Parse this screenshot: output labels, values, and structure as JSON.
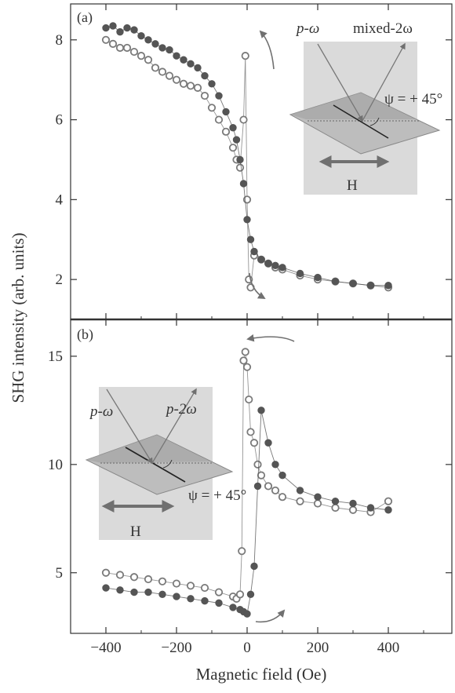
{
  "figure": {
    "ylabel": "SHG intensity (arb. units)",
    "xlabel": "Magnetic field (Oe)"
  },
  "colors": {
    "filled": "#555555",
    "open_stroke": "#7a7a7a",
    "axis": "#333333",
    "inset_bg": "#d6d6d6",
    "arrow": "#707070"
  },
  "chart_data": [
    {
      "type": "scatter",
      "panel_label": "(a)",
      "xlim": [
        -500,
        580
      ],
      "ylim": [
        1.0,
        8.9
      ],
      "xticks": [
        -400,
        -200,
        0,
        200,
        400
      ],
      "yticks": [
        2,
        4,
        6,
        8
      ],
      "ytick_labels": [
        "2",
        "4",
        "6",
        "8"
      ],
      "grid": false,
      "series": [
        {
          "style": "filled",
          "x": [
            -400,
            -380,
            -360,
            -340,
            -320,
            -300,
            -280,
            -260,
            -240,
            -220,
            -200,
            -180,
            -160,
            -140,
            -120,
            -100,
            -80,
            -60,
            -40,
            -30,
            -20,
            -10,
            0,
            10,
            20,
            40,
            60,
            80,
            100,
            150,
            200,
            250,
            300,
            350,
            400
          ],
          "y": [
            8.3,
            8.35,
            8.2,
            8.3,
            8.25,
            8.1,
            8.0,
            7.9,
            7.8,
            7.75,
            7.6,
            7.5,
            7.4,
            7.3,
            7.1,
            6.9,
            6.6,
            6.2,
            5.8,
            5.5,
            5.0,
            4.4,
            3.5,
            3.0,
            2.7,
            2.5,
            2.4,
            2.35,
            2.3,
            2.15,
            2.05,
            1.95,
            1.9,
            1.85,
            1.85
          ]
        },
        {
          "style": "open",
          "x": [
            -400,
            -380,
            -360,
            -340,
            -320,
            -300,
            -280,
            -260,
            -240,
            -220,
            -200,
            -180,
            -160,
            -140,
            -120,
            -100,
            -80,
            -60,
            -40,
            -30,
            -20,
            -10,
            -5,
            0,
            5,
            10,
            20,
            40,
            60,
            80,
            100,
            150,
            200,
            250,
            300,
            350,
            400
          ],
          "y": [
            8.0,
            7.9,
            7.8,
            7.8,
            7.7,
            7.6,
            7.5,
            7.3,
            7.2,
            7.1,
            7.0,
            6.9,
            6.85,
            6.8,
            6.6,
            6.3,
            6.0,
            5.7,
            5.3,
            5.0,
            4.8,
            6.0,
            7.6,
            4.0,
            2.0,
            1.8,
            2.6,
            2.5,
            2.4,
            2.3,
            2.25,
            2.1,
            2.0,
            1.95,
            1.9,
            1.85,
            1.8
          ]
        }
      ]
    },
    {
      "type": "scatter",
      "panel_label": "(b)",
      "xlim": [
        -500,
        580
      ],
      "ylim": [
        2.2,
        16.7
      ],
      "xticks": [
        -400,
        -200,
        0,
        200,
        400
      ],
      "xtick_labels": [
        "−400",
        "−200",
        "0",
        "200",
        "400"
      ],
      "yticks": [
        5,
        10,
        15
      ],
      "ytick_labels": [
        "5",
        "10",
        "15"
      ],
      "grid": false,
      "series": [
        {
          "style": "filled",
          "x": [
            -400,
            -360,
            -320,
            -280,
            -240,
            -200,
            -160,
            -120,
            -80,
            -40,
            -20,
            -10,
            0,
            10,
            20,
            30,
            40,
            60,
            80,
            100,
            150,
            200,
            250,
            300,
            350,
            400
          ],
          "y": [
            4.3,
            4.2,
            4.1,
            4.1,
            4.0,
            3.9,
            3.8,
            3.7,
            3.6,
            3.4,
            3.3,
            3.2,
            3.1,
            4.0,
            5.3,
            9.0,
            12.5,
            11.0,
            10.0,
            9.5,
            8.8,
            8.5,
            8.3,
            8.2,
            8.0,
            7.9
          ]
        },
        {
          "style": "open",
          "x": [
            -400,
            -360,
            -320,
            -280,
            -240,
            -200,
            -160,
            -120,
            -80,
            -40,
            -30,
            -20,
            -15,
            -10,
            -5,
            0,
            5,
            10,
            20,
            30,
            40,
            60,
            80,
            100,
            150,
            200,
            250,
            300,
            350,
            400
          ],
          "y": [
            5.0,
            4.9,
            4.8,
            4.7,
            4.6,
            4.5,
            4.4,
            4.3,
            4.1,
            3.9,
            3.8,
            4.0,
            6.0,
            14.8,
            15.2,
            14.5,
            13.0,
            11.5,
            11.0,
            10.0,
            9.5,
            9.0,
            8.8,
            8.5,
            8.3,
            8.2,
            8.0,
            7.9,
            7.8,
            8.3
          ]
        }
      ]
    }
  ],
  "insets": {
    "a": {
      "incident": "p-ω",
      "reflected": "mixed-2ω",
      "angle": "ψ = + 45°",
      "field": "H"
    },
    "b": {
      "incident": "p-ω",
      "reflected": "p-2ω",
      "angle": "ψ = + 45°",
      "field": "H"
    }
  }
}
